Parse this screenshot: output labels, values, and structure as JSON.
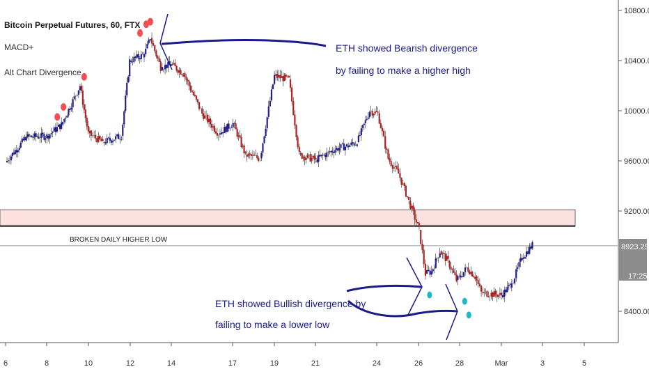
{
  "header": {
    "title": "Bitcoin Perpetual Futures, 60, FTX",
    "indicators": [
      "MACD+",
      "Alt Chart Divergence"
    ]
  },
  "annotations": {
    "bearish_line1": "ETH showed Bearish divergence",
    "bearish_line2": "by failing to make a higher high",
    "bullish_line1": "ETH showed Bullish divergence by",
    "bullish_line2": "failing to make a lower low",
    "level_label": "BROKEN DAILY HIGHER LOW"
  },
  "price_axis": {
    "ticks": [
      "10800.00",
      "10400.00",
      "10000.00",
      "9600.00",
      "9200.00",
      "8400.00"
    ],
    "last_price": "8923.25",
    "countdown": "17:25"
  },
  "colors": {
    "up": "#1f1f8f",
    "down": "#b22222",
    "annotation": "#1a1a8a",
    "zone_fill": "#fde0e0",
    "signal_red": "#f05050",
    "signal_teal": "#20b8c8",
    "badge": "#8c8c8c"
  },
  "chart_data": {
    "type": "line",
    "title": "Bitcoin Perpetual Futures, 60, FTX",
    "xlabel": "",
    "ylabel": "",
    "x_ticks": [
      "6",
      "8",
      "10",
      "12",
      "14",
      "17",
      "19",
      "21",
      "24",
      "26",
      "28",
      "Mar",
      "3",
      "5"
    ],
    "y_ticks": [
      10800,
      10400,
      10000,
      9600,
      9200,
      8400
    ],
    "ylim": [
      8200,
      10900
    ],
    "grid": false,
    "series": [
      {
        "x": [
          "6",
          "7",
          "8",
          "8.7",
          "9.6",
          "10",
          "10.7",
          "11.6",
          "12",
          "12.7",
          "13",
          "13.5",
          "14",
          "14.6",
          "15.5",
          "16.3",
          "17",
          "17.6",
          "18.3",
          "19",
          "19.7",
          "20.2",
          "21",
          "22",
          "22.5",
          "23",
          "23.6",
          "24",
          "24.5",
          "25",
          "25.5",
          "26",
          "26.3",
          "26.6",
          "27",
          "27.4",
          "27.8",
          "28",
          "28.3",
          "28.7",
          "29",
          "Mar",
          "1.5",
          "2",
          "2.5"
        ],
        "values": [
          9590,
          9790,
          9800,
          9890,
          10200,
          9820,
          9750,
          9800,
          10400,
          10450,
          10580,
          10350,
          10370,
          10300,
          9980,
          9820,
          9900,
          9650,
          9620,
          10280,
          10250,
          9650,
          9610,
          9700,
          9720,
          9750,
          10000,
          9980,
          9620,
          9500,
          9280,
          9050,
          8700,
          8720,
          8880,
          8800,
          8650,
          8680,
          8750,
          8680,
          8550,
          8530,
          8620,
          8830,
          8930
        ]
      }
    ],
    "horizontal_levels": [
      {
        "name": "zone",
        "from": 9080,
        "to": 9210
      },
      {
        "name": "broken_daily_higher_low",
        "value": 9080
      },
      {
        "name": "last_price",
        "value": 8923.25
      }
    ],
    "signals": {
      "bearish_dots": [
        {
          "x": "8.5",
          "y": 9950
        },
        {
          "x": "8.8",
          "y": 10030
        },
        {
          "x": "9.8",
          "y": 10270
        },
        {
          "x": "12.5",
          "y": 10620
        },
        {
          "x": "12.8",
          "y": 10690
        },
        {
          "x": "13",
          "y": 10710
        }
      ],
      "bullish_dots": [
        {
          "x": "26.5",
          "y": 8530
        },
        {
          "x": "28.2",
          "y": 8480
        },
        {
          "x": "28.4",
          "y": 8370
        }
      ]
    }
  }
}
